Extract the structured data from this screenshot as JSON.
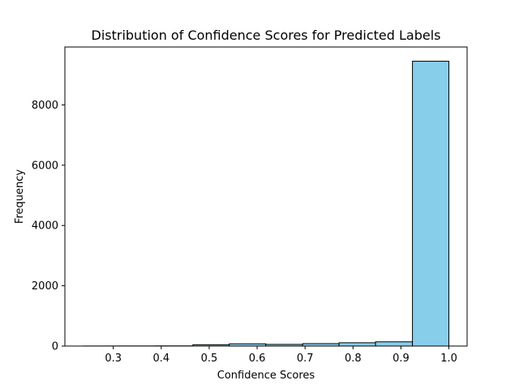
{
  "chart_data": {
    "type": "bar",
    "title": "Distribution of Confidence Scores for Predicted Labels",
    "xlabel": "Confidence Scores",
    "ylabel": "Frequency",
    "bar_color": "#87ceeb",
    "edge_color": "#000000",
    "bins": [
      {
        "start": 0.237,
        "end": 0.313,
        "value": 3
      },
      {
        "start": 0.313,
        "end": 0.389,
        "value": 4
      },
      {
        "start": 0.389,
        "end": 0.466,
        "value": 6
      },
      {
        "start": 0.466,
        "end": 0.542,
        "value": 45
      },
      {
        "start": 0.542,
        "end": 0.618,
        "value": 75
      },
      {
        "start": 0.618,
        "end": 0.695,
        "value": 55
      },
      {
        "start": 0.695,
        "end": 0.771,
        "value": 80
      },
      {
        "start": 0.771,
        "end": 0.847,
        "value": 110
      },
      {
        "start": 0.847,
        "end": 0.924,
        "value": 140
      },
      {
        "start": 0.924,
        "end": 1.0,
        "value": 9450
      }
    ],
    "xlim": [
      0.199,
      1.038
    ],
    "ylim": [
      0,
      9922
    ],
    "x_ticks": [
      {
        "value": 0.3,
        "label": "0.3"
      },
      {
        "value": 0.4,
        "label": "0.4"
      },
      {
        "value": 0.5,
        "label": "0.5"
      },
      {
        "value": 0.6,
        "label": "0.6"
      },
      {
        "value": 0.7,
        "label": "0.7"
      },
      {
        "value": 0.8,
        "label": "0.8"
      },
      {
        "value": 0.9,
        "label": "0.9"
      },
      {
        "value": 1.0,
        "label": "1.0"
      }
    ],
    "y_ticks": [
      {
        "value": 0,
        "label": "0"
      },
      {
        "value": 2000,
        "label": "2000"
      },
      {
        "value": 4000,
        "label": "4000"
      },
      {
        "value": 6000,
        "label": "6000"
      },
      {
        "value": 8000,
        "label": "8000"
      }
    ],
    "grid": false,
    "legend": "none"
  }
}
